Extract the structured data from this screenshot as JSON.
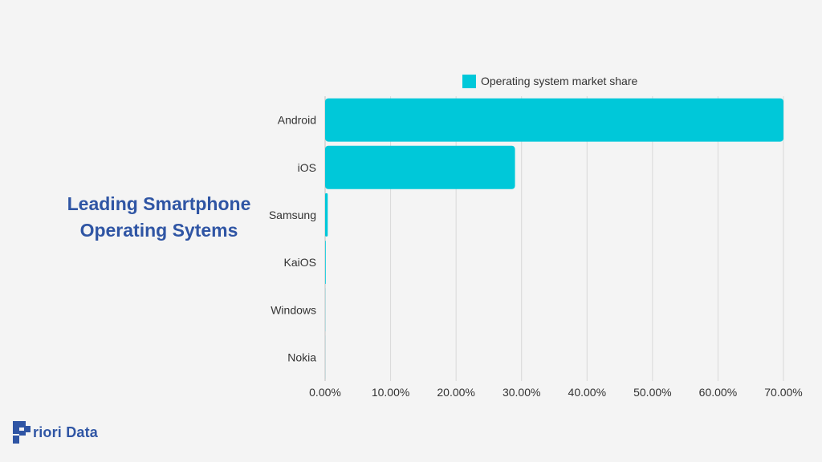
{
  "title": {
    "line1": "Leading Smartphone",
    "line2": "Operating Sytems"
  },
  "logo": {
    "text": "riori Data",
    "letter": "P"
  },
  "colors": {
    "bar": "#00c8d9",
    "title": "#2f55a4",
    "grid": "#d9d9d9",
    "text": "#333333"
  },
  "chart_data": {
    "type": "bar",
    "orientation": "horizontal",
    "categories": [
      "Android",
      "iOS",
      "Samsung",
      "KaiOS",
      "Windows",
      "Nokia"
    ],
    "series": [
      {
        "name": "Operating system market share",
        "values": [
          70.0,
          29.0,
          0.4,
          0.1,
          0.02,
          0.01
        ]
      }
    ],
    "xlim": [
      0,
      70
    ],
    "xticks": [
      "0.00%",
      "10.00%",
      "20.00%",
      "30.00%",
      "40.00%",
      "50.00%",
      "60.00%",
      "70.00%"
    ],
    "legend": "top",
    "grid": true
  }
}
